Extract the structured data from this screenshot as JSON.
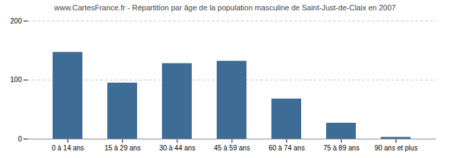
{
  "chart_data": {
    "type": "bar",
    "title": "www.CartesFrance.fr - Répartition par âge de la population masculine de Saint-Just-de-Claix en 2007",
    "categories": [
      "0 à 14 ans",
      "15 à 29 ans",
      "30 à 44 ans",
      "45 à 59 ans",
      "60 à 74 ans",
      "75 à 89 ans",
      "90 ans et plus"
    ],
    "values": [
      147,
      95,
      128,
      132,
      68,
      27,
      3
    ],
    "color": "#3d6d96",
    "ylim": [
      0,
      200
    ],
    "yticks": [
      0,
      100,
      200
    ],
    "grid": true
  }
}
